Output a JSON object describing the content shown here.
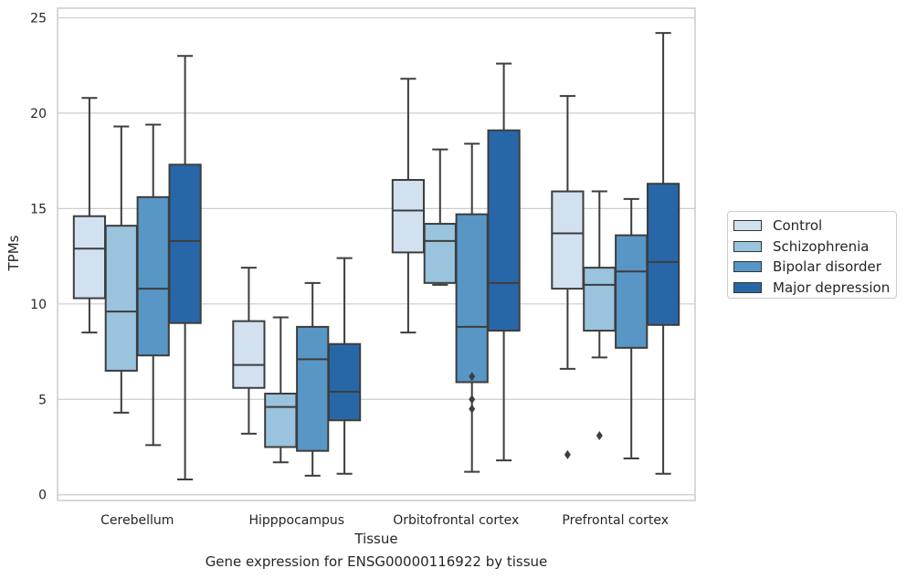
{
  "caption": "Gene expression for ENSG00000116922 by tissue",
  "chart_data": {
    "type": "box",
    "xlabel": "Tissue",
    "ylabel": "TPMs",
    "ylim": [
      -0.3,
      25.5
    ],
    "yticks": [
      0,
      5,
      10,
      15,
      20,
      25
    ],
    "grid": "horizontal",
    "legend_position": "right",
    "categories": [
      "Cerebellum",
      "Hipppocampus",
      "Orbitofrontal cortex",
      "Prefrontal cortex"
    ],
    "series": [
      {
        "name": "Control",
        "color": "#d1e1f0",
        "boxes": [
          {
            "whisker_low": 8.5,
            "q1": 10.3,
            "median": 12.9,
            "q3": 14.6,
            "whisker_high": 20.8,
            "outliers": []
          },
          {
            "whisker_low": 3.2,
            "q1": 5.6,
            "median": 6.8,
            "q3": 9.1,
            "whisker_high": 11.9,
            "outliers": []
          },
          {
            "whisker_low": 8.5,
            "q1": 12.7,
            "median": 14.9,
            "q3": 16.5,
            "whisker_high": 21.8,
            "outliers": []
          },
          {
            "whisker_low": 6.6,
            "q1": 10.8,
            "median": 13.7,
            "q3": 15.9,
            "whisker_high": 20.9,
            "outliers": [
              2.1
            ]
          }
        ]
      },
      {
        "name": "Schizophrenia",
        "color": "#9ac3dd",
        "boxes": [
          {
            "whisker_low": 4.3,
            "q1": 6.5,
            "median": 9.6,
            "q3": 14.1,
            "whisker_high": 19.3,
            "outliers": []
          },
          {
            "whisker_low": 1.7,
            "q1": 2.5,
            "median": 4.6,
            "q3": 5.3,
            "whisker_high": 9.3,
            "outliers": []
          },
          {
            "whisker_low": 11.0,
            "q1": 11.1,
            "median": 13.3,
            "q3": 14.2,
            "whisker_high": 18.1,
            "outliers": []
          },
          {
            "whisker_low": 7.2,
            "q1": 8.6,
            "median": 11.0,
            "q3": 11.9,
            "whisker_high": 15.9,
            "outliers": [
              3.1
            ]
          }
        ]
      },
      {
        "name": "Bipolar disorder",
        "color": "#5896c6",
        "boxes": [
          {
            "whisker_low": 2.6,
            "q1": 7.3,
            "median": 10.8,
            "q3": 15.6,
            "whisker_high": 19.4,
            "outliers": []
          },
          {
            "whisker_low": 1.0,
            "q1": 2.3,
            "median": 7.1,
            "q3": 8.8,
            "whisker_high": 11.1,
            "outliers": []
          },
          {
            "whisker_low": 1.2,
            "q1": 5.9,
            "median": 8.8,
            "q3": 14.7,
            "whisker_high": 18.4,
            "outliers": [
              6.2,
              5.0,
              4.5
            ]
          },
          {
            "whisker_low": 1.9,
            "q1": 7.7,
            "median": 11.7,
            "q3": 13.6,
            "whisker_high": 15.5,
            "outliers": []
          }
        ]
      },
      {
        "name": "Major depression",
        "color": "#2867a7",
        "boxes": [
          {
            "whisker_low": 0.8,
            "q1": 9.0,
            "median": 13.3,
            "q3": 17.3,
            "whisker_high": 23.0,
            "outliers": []
          },
          {
            "whisker_low": 1.1,
            "q1": 3.9,
            "median": 5.4,
            "q3": 7.9,
            "whisker_high": 12.4,
            "outliers": []
          },
          {
            "whisker_low": 1.8,
            "q1": 8.6,
            "median": 11.1,
            "q3": 19.1,
            "whisker_high": 22.6,
            "outliers": []
          },
          {
            "whisker_low": 1.1,
            "q1": 8.9,
            "median": 12.2,
            "q3": 16.3,
            "whisker_high": 24.2,
            "outliers": []
          }
        ]
      }
    ]
  }
}
